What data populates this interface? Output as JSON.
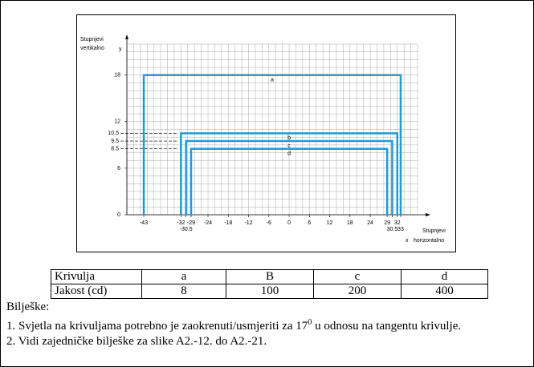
{
  "chart_data": {
    "type": "line",
    "x_label": [
      "Stupnjevi",
      "horizontalno"
    ],
    "x_axis_symbol": "x",
    "y_label": [
      "Stupnjevi",
      "vertikalno"
    ],
    "y_axis_symbol": "y",
    "xlim": [
      -48,
      38
    ],
    "ylim": [
      0,
      22
    ],
    "xticks": [
      -43,
      -32,
      -29,
      -24,
      -18,
      -12,
      -6,
      0,
      6,
      12,
      18,
      24,
      29,
      32
    ],
    "xticks_lower": [
      -30.5,
      30.5,
      33
    ],
    "yticks": [
      0,
      6,
      12,
      18
    ],
    "yticks_dashed": [
      8.5,
      9.5,
      10.5
    ],
    "grid": true,
    "grid_step": [
      2,
      1
    ],
    "series": [
      {
        "name": "a",
        "color": "#1f9bd5",
        "x": [
          -43,
          -43,
          33,
          33
        ],
        "values": [
          0,
          18,
          18,
          0
        ]
      },
      {
        "name": "b",
        "color": "#1f9bd5",
        "x": [
          -32,
          -32,
          32,
          32
        ],
        "values": [
          0,
          10.5,
          10.5,
          0
        ]
      },
      {
        "name": "c",
        "color": "#1f9bd5",
        "x": [
          -30.5,
          -30.5,
          30.5,
          30.5
        ],
        "values": [
          0,
          9.5,
          9.5,
          0
        ]
      },
      {
        "name": "d",
        "color": "#1f9bd5",
        "x": [
          -29,
          -29,
          29,
          29
        ],
        "values": [
          0,
          8.5,
          8.5,
          0
        ]
      }
    ]
  },
  "table": {
    "header": [
      "Krivulja",
      "a",
      "B",
      "c",
      "d"
    ],
    "rows": [
      [
        "Jakost (cd)",
        "8",
        "100",
        "200",
        "400"
      ]
    ]
  },
  "notes": {
    "title": "Bilješke:",
    "item1": {
      "text": "1. Svjetla na krivuljama potrebno je zaokrenuti/usmjeriti za 17",
      "sup": "0",
      "tail": " u odnosu na tangentu krivulje."
    },
    "item2": "2. Vidi zajedničke bilješke za slike A2.-12. do A2.-21."
  }
}
